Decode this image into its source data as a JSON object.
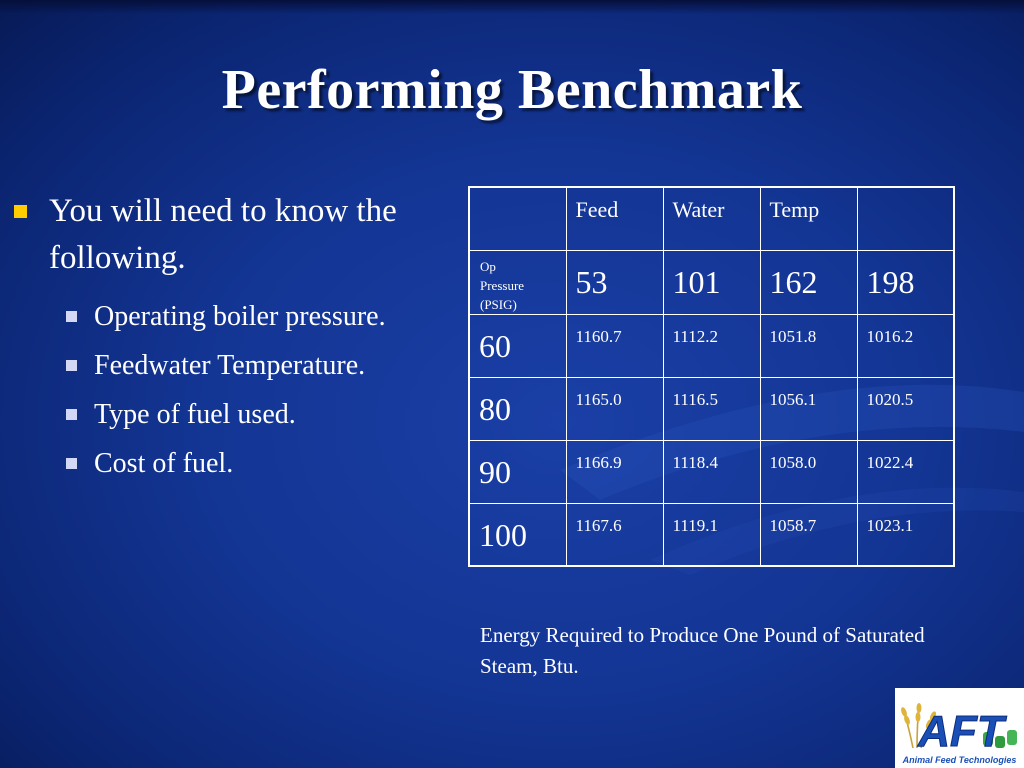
{
  "title": "Performing Benchmark",
  "bullets": {
    "main": "You will need to know the following.",
    "subs": [
      "Operating boiler pressure.",
      "Feedwater Temperature.",
      "Type of fuel used.",
      "Cost of fuel."
    ]
  },
  "table": {
    "header": [
      "",
      "Feed",
      "Water",
      "Temp",
      ""
    ],
    "op_label": [
      "Op",
      "Pressure",
      "(PSIG)"
    ],
    "temps": [
      "53",
      "101",
      "162",
      "198"
    ],
    "rows": [
      {
        "pressure": "60",
        "values": [
          "1160.7",
          "1112.2",
          "1051.8",
          "1016.2"
        ]
      },
      {
        "pressure": "80",
        "values": [
          "1165.0",
          "1116.5",
          "1056.1",
          "1020.5"
        ]
      },
      {
        "pressure": "90",
        "values": [
          "1166.9",
          "1118.4",
          "1058.0",
          "1022.4"
        ]
      },
      {
        "pressure": "100",
        "values": [
          "1167.6",
          "1119.1",
          "1058.7",
          "1023.1"
        ]
      }
    ]
  },
  "caption": "Energy Required to Produce One Pound of Saturated Steam, Btu.",
  "logo": {
    "letters": "AFT",
    "text": "Animal Feed Technologies"
  },
  "colors": {
    "background": "#133594",
    "bullet_main": "#ffcc00",
    "bullet_sub": "#d2d8f6",
    "logo_blue": "#1a4fb8"
  }
}
